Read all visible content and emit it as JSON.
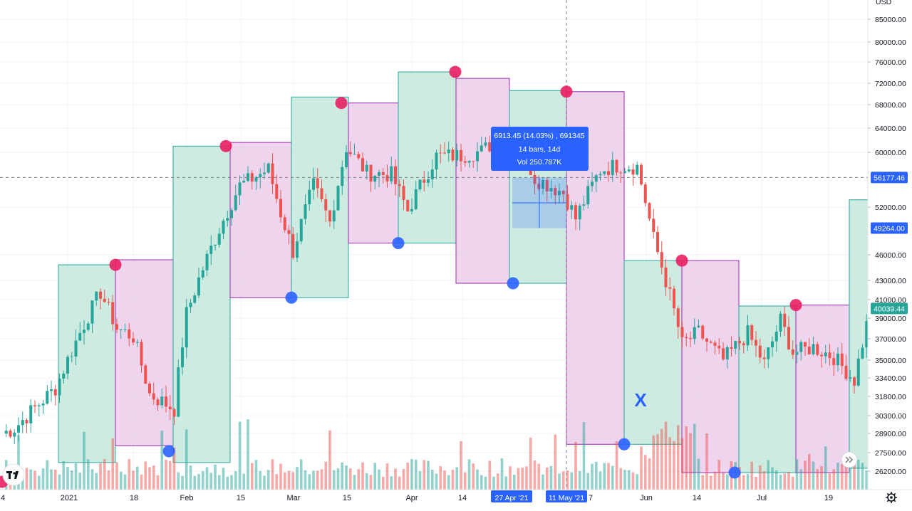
{
  "chart_data": {
    "type": "candlestick",
    "currency_label": "USD",
    "price_axis_ticks": [
      85000,
      80000,
      76000,
      72000,
      68000,
      64000,
      60000,
      52000,
      46000,
      43000,
      41000,
      39000,
      37000,
      35000,
      33400,
      31800,
      30300,
      28900,
      27500,
      26200
    ],
    "price_axis_tick_labels": [
      "85000.00",
      "80000.00",
      "76000.00",
      "72000.00",
      "68000.00",
      "64000.00",
      "60000.00",
      "52000.00",
      "46000.00",
      "43000.00",
      "41000.00",
      "39000.00",
      "37000.00",
      "35000.00",
      "33400.00",
      "31800.00",
      "30300.00",
      "28900.00",
      "27500.00",
      "26200.00"
    ],
    "price_badges": [
      {
        "label": "56177.46",
        "value": 56177.46,
        "color": "#2962ff"
      },
      {
        "label": "49264.00",
        "value": 49264.0,
        "color": "#2962ff"
      },
      {
        "label": "40039.44",
        "value": 40039.44,
        "color": "#26a69a"
      }
    ],
    "time_axis_labels": [
      "4",
      "2021",
      "18",
      "Feb",
      "15",
      "Mar",
      "15",
      "Apr",
      "14",
      "27 Apr '21",
      "11 May '21",
      "7",
      "Jun",
      "14",
      "Jul",
      "19"
    ],
    "highlighted_time_labels": [
      "27 Apr '21",
      "11 May '21"
    ],
    "measure_tooltip": {
      "line1": "6913.45 (14.03%) , 691345",
      "line2": "14 bars, 14d",
      "line3": "Vol 250.787K"
    },
    "annotation_text": "X",
    "zones": [
      {
        "kind": "up",
        "low": 26800,
        "high": 44800
      },
      {
        "kind": "down",
        "low": 28000,
        "high": 45400
      },
      {
        "kind": "up",
        "low": 26800,
        "high": 61000
      },
      {
        "kind": "down",
        "low": 41200,
        "high": 61600
      },
      {
        "kind": "up",
        "low": 41200,
        "high": 69400
      },
      {
        "kind": "down",
        "low": 47400,
        "high": 68300
      },
      {
        "kind": "up",
        "low": 47400,
        "high": 74100
      },
      {
        "kind": "down",
        "low": 42700,
        "high": 72900
      },
      {
        "kind": "up",
        "low": 42700,
        "high": 70600
      },
      {
        "kind": "down",
        "low": 28100,
        "high": 70400
      },
      {
        "kind": "up",
        "low": 28100,
        "high": 45300
      },
      {
        "kind": "down",
        "low": 26100,
        "high": 45300
      },
      {
        "kind": "up",
        "low": 26100,
        "high": 40300
      },
      {
        "kind": "down",
        "low": 26100,
        "high": 40400
      }
    ],
    "swing_highs": [
      44800,
      61000,
      68300,
      74100,
      70400,
      45300,
      40400
    ],
    "swing_lows": [
      27600,
      41200,
      47400,
      42700,
      28100,
      26100
    ],
    "colors": {
      "up_candle": "#26a69a",
      "down_candle": "#ef5350",
      "up_zone_fill": "#b9e3d6",
      "down_zone_fill": "#e7c3e5",
      "swing_high_dot": "#e91e63",
      "swing_low_dot": "#2962ff",
      "measure_box": "#2962ff"
    }
  }
}
